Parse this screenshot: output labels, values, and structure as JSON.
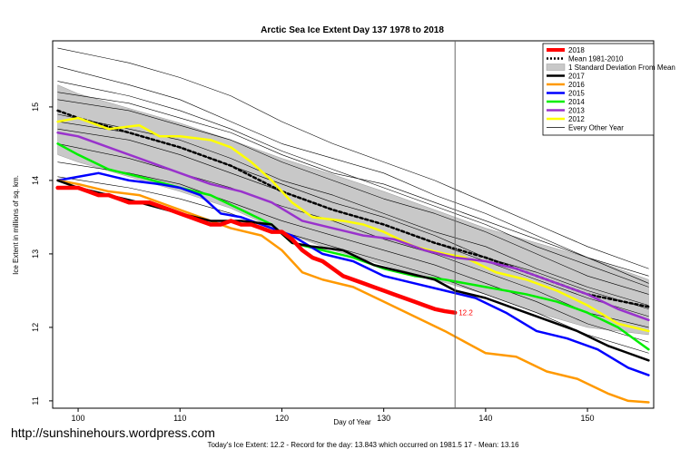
{
  "chart_data": {
    "type": "line",
    "title": "Arctic Sea Ice Extent Day 137 1978 to 2018",
    "xlabel": "Day of Year",
    "ylabel": "Ice Extent in millions of sq. km.",
    "xlim": [
      97.5,
      156.5
    ],
    "ylim": [
      10.9,
      15.9
    ],
    "x_ticks": [
      100,
      110,
      120,
      130,
      140,
      150
    ],
    "y_ticks": [
      11,
      12,
      13,
      14,
      15
    ],
    "x_tick_labels": [
      "100",
      "110",
      "120",
      "130",
      "140",
      "150"
    ],
    "y_tick_labels": [
      "11",
      "12",
      "13",
      "14",
      "15"
    ],
    "current_day": 137,
    "last_value_label": "12.2",
    "legend_position": "top-right",
    "band": {
      "name": "1 Standard Deviation From Mean",
      "x": [
        98,
        100,
        105,
        110,
        115,
        120,
        125,
        130,
        135,
        140,
        145,
        150,
        156
      ],
      "upper": [
        15.3,
        15.18,
        14.98,
        14.78,
        14.55,
        14.3,
        14.08,
        13.85,
        13.6,
        13.35,
        13.15,
        12.95,
        12.65
      ],
      "lower": [
        14.35,
        14.25,
        14.05,
        13.85,
        13.62,
        13.3,
        13.05,
        12.85,
        12.65,
        12.45,
        12.2,
        12.0,
        11.9
      ]
    },
    "series": [
      {
        "name": "Every Other Year",
        "style": "thin",
        "color": "#000000",
        "x": [
          98,
          105,
          110,
          115,
          120,
          125,
          130,
          135,
          140,
          145,
          150,
          156
        ],
        "values": [
          15.8,
          15.6,
          15.4,
          15.15,
          14.8,
          14.5,
          14.25,
          14.0,
          13.7,
          13.4,
          13.1,
          12.8
        ]
      },
      {
        "name": "Every Other Year",
        "style": "thin",
        "color": "#000000",
        "x": [
          98,
          105,
          110,
          115,
          120,
          125,
          130,
          135,
          140,
          145,
          150,
          156
        ],
        "values": [
          15.55,
          15.3,
          15.1,
          14.8,
          14.5,
          14.3,
          14.1,
          13.8,
          13.55,
          13.25,
          12.95,
          12.7
        ]
      },
      {
        "name": "Every Other Year",
        "style": "thin",
        "color": "#000000",
        "x": [
          98,
          105,
          110,
          115,
          120,
          125,
          130,
          135,
          140,
          145,
          150,
          156
        ],
        "values": [
          15.35,
          15.15,
          14.95,
          14.7,
          14.4,
          14.15,
          13.9,
          13.65,
          13.4,
          13.1,
          12.85,
          12.55
        ]
      },
      {
        "name": "Every Other Year",
        "style": "thin",
        "color": "#000000",
        "x": [
          98,
          105,
          110,
          115,
          120,
          125,
          130,
          135,
          140,
          145,
          150,
          156
        ],
        "values": [
          15.1,
          14.95,
          14.75,
          14.55,
          14.25,
          14.0,
          13.75,
          13.55,
          13.3,
          13.0,
          12.7,
          12.45
        ]
      },
      {
        "name": "Every Other Year",
        "style": "thin",
        "color": "#000000",
        "x": [
          98,
          105,
          110,
          115,
          120,
          125,
          130,
          135,
          140,
          145,
          150,
          156
        ],
        "values": [
          14.9,
          14.7,
          14.55,
          14.3,
          14.0,
          13.8,
          13.55,
          13.3,
          13.1,
          12.8,
          12.55,
          12.3
        ]
      },
      {
        "name": "Every Other Year",
        "style": "thin",
        "color": "#000000",
        "x": [
          98,
          105,
          110,
          115,
          120,
          125,
          130,
          135,
          140,
          145,
          150,
          156
        ],
        "values": [
          14.7,
          14.55,
          14.35,
          14.1,
          13.85,
          13.6,
          13.4,
          13.15,
          12.9,
          12.65,
          12.4,
          12.15
        ]
      },
      {
        "name": "Every Other Year",
        "style": "thin",
        "color": "#000000",
        "x": [
          98,
          105,
          110,
          115,
          120,
          125,
          130,
          135,
          140,
          145,
          150,
          156
        ],
        "values": [
          14.5,
          14.3,
          14.1,
          13.9,
          13.65,
          13.45,
          13.2,
          13.0,
          12.75,
          12.5,
          12.2,
          12.0
        ]
      },
      {
        "name": "Every Other Year",
        "style": "thin",
        "color": "#000000",
        "x": [
          98,
          105,
          110,
          115,
          120,
          125,
          130,
          135,
          140,
          145,
          150,
          156
        ],
        "values": [
          14.25,
          14.1,
          13.95,
          13.7,
          13.45,
          13.25,
          13.05,
          12.85,
          12.6,
          12.35,
          12.05,
          11.8
        ]
      },
      {
        "name": "Every Other Year",
        "style": "thin",
        "color": "#000000",
        "x": [
          98,
          105,
          110,
          115,
          120,
          125,
          130,
          135,
          140,
          145,
          150,
          156
        ],
        "values": [
          14.05,
          13.9,
          13.75,
          13.55,
          13.3,
          13.1,
          12.9,
          12.7,
          12.45,
          12.2,
          11.9,
          11.65
        ]
      },
      {
        "name": "Every Other Year",
        "style": "thin",
        "color": "#000000",
        "x": [
          98,
          105,
          110,
          115,
          120,
          125,
          130,
          135,
          140,
          145,
          150,
          156
        ],
        "values": [
          15.2,
          15.05,
          14.85,
          14.65,
          14.35,
          14.1,
          13.95,
          13.7,
          13.45,
          13.2,
          12.95,
          12.6
        ]
      },
      {
        "name": "Every Other Year",
        "style": "thin",
        "color": "#000000",
        "x": [
          98,
          105,
          110,
          115,
          120,
          125,
          130,
          135,
          140,
          145,
          150,
          156
        ],
        "values": [
          14.8,
          14.65,
          14.45,
          14.2,
          13.95,
          13.7,
          13.5,
          13.25,
          12.95,
          12.75,
          12.5,
          12.25
        ]
      },
      {
        "name": "Mean 1981-2010",
        "style": "dotted",
        "color": "#000000",
        "x": [
          98,
          100,
          105,
          110,
          115,
          120,
          125,
          130,
          135,
          140,
          145,
          150,
          156
        ],
        "values": [
          14.95,
          14.85,
          14.65,
          14.45,
          14.2,
          13.85,
          13.6,
          13.4,
          13.15,
          12.95,
          12.7,
          12.45,
          12.28
        ]
      },
      {
        "name": "2012",
        "color": "#ffff00",
        "x": [
          98,
          100,
          103,
          106,
          108,
          110,
          113,
          115,
          117,
          119,
          121,
          123,
          126,
          128,
          130,
          133,
          136,
          138,
          141,
          144,
          147,
          150,
          153,
          156
        ],
        "values": [
          14.8,
          14.85,
          14.7,
          14.75,
          14.6,
          14.6,
          14.55,
          14.45,
          14.25,
          14.0,
          13.7,
          13.5,
          13.45,
          13.4,
          13.3,
          13.1,
          13.0,
          12.95,
          12.75,
          12.65,
          12.5,
          12.3,
          12.05,
          11.95
        ]
      },
      {
        "name": "2013",
        "color": "#9932cc",
        "x": [
          98,
          100,
          103,
          106,
          110,
          113,
          116,
          119,
          122,
          125,
          128,
          131,
          134,
          137,
          140,
          143,
          146,
          150,
          153,
          156
        ],
        "values": [
          14.65,
          14.6,
          14.45,
          14.3,
          14.1,
          13.95,
          13.85,
          13.7,
          13.45,
          13.35,
          13.25,
          13.2,
          13.05,
          12.95,
          12.9,
          12.8,
          12.65,
          12.45,
          12.25,
          12.1
        ]
      },
      {
        "name": "2014",
        "color": "#00ee00",
        "x": [
          98,
          100,
          103,
          106,
          110,
          113,
          116,
          119,
          121,
          124,
          127,
          130,
          133,
          136,
          140,
          144,
          147,
          150,
          153,
          156
        ],
        "values": [
          14.5,
          14.35,
          14.15,
          14.05,
          13.9,
          13.8,
          13.6,
          13.4,
          13.15,
          13.05,
          12.95,
          12.8,
          12.7,
          12.65,
          12.55,
          12.45,
          12.35,
          12.2,
          12.0,
          11.7
        ]
      },
      {
        "name": "2015",
        "color": "#0000ff",
        "x": [
          98,
          100,
          102,
          105,
          108,
          110,
          112,
          114,
          116,
          118,
          121,
          124,
          127,
          130,
          133,
          136,
          139,
          142,
          145,
          148,
          151,
          154,
          156
        ],
        "values": [
          14.0,
          14.05,
          14.1,
          14.0,
          13.95,
          13.9,
          13.8,
          13.55,
          13.5,
          13.4,
          13.25,
          13.0,
          12.9,
          12.7,
          12.6,
          12.5,
          12.4,
          12.2,
          11.95,
          11.85,
          11.7,
          11.45,
          11.35
        ]
      },
      {
        "name": "2016",
        "color": "#ff9900",
        "x": [
          98,
          100,
          103,
          106,
          109,
          112,
          115,
          118,
          120,
          122,
          124,
          127,
          130,
          133,
          136,
          138,
          140,
          143,
          146,
          149,
          152,
          154,
          156
        ],
        "values": [
          14.0,
          13.95,
          13.85,
          13.8,
          13.65,
          13.5,
          13.35,
          13.25,
          13.05,
          12.75,
          12.65,
          12.55,
          12.35,
          12.15,
          11.95,
          11.8,
          11.65,
          11.6,
          11.4,
          11.3,
          11.1,
          11.0,
          10.98
        ]
      },
      {
        "name": "2017",
        "color": "#000000",
        "x": [
          98,
          100,
          103,
          106,
          110,
          113,
          116,
          119,
          121,
          123,
          126,
          129,
          132,
          135,
          137,
          140,
          143,
          146,
          149,
          152,
          154,
          156
        ],
        "values": [
          14.0,
          13.9,
          13.8,
          13.7,
          13.55,
          13.45,
          13.45,
          13.4,
          13.15,
          13.1,
          13.05,
          12.85,
          12.75,
          12.65,
          12.5,
          12.4,
          12.25,
          12.1,
          11.95,
          11.75,
          11.65,
          11.55
        ]
      },
      {
        "name": "2018",
        "color": "#ff0000",
        "x": [
          98,
          99,
          100,
          101,
          102,
          103,
          104,
          105,
          106,
          107,
          108,
          109,
          110,
          111,
          112,
          113,
          114,
          115,
          116,
          117,
          118,
          119,
          120,
          121,
          122,
          123,
          124,
          125,
          126,
          127,
          128,
          129,
          130,
          131,
          132,
          133,
          134,
          135,
          136,
          137
        ],
        "values": [
          13.9,
          13.9,
          13.9,
          13.85,
          13.8,
          13.8,
          13.75,
          13.7,
          13.7,
          13.7,
          13.65,
          13.6,
          13.55,
          13.5,
          13.45,
          13.4,
          13.4,
          13.45,
          13.4,
          13.4,
          13.35,
          13.3,
          13.3,
          13.2,
          13.05,
          12.95,
          12.9,
          12.8,
          12.7,
          12.65,
          12.6,
          12.55,
          12.5,
          12.45,
          12.4,
          12.35,
          12.3,
          12.25,
          12.22,
          12.2
        ]
      }
    ]
  },
  "legend": {
    "items": [
      {
        "label": "2018",
        "color": "#ff0000",
        "kind": "line-thick"
      },
      {
        "label": "Mean 1981-2010",
        "color": "#000000",
        "kind": "dotted"
      },
      {
        "label": "1 Standard Deviation From Mean",
        "color": "#c8c8c8",
        "kind": "box"
      },
      {
        "label": "2017",
        "color": "#000000",
        "kind": "line"
      },
      {
        "label": "2016",
        "color": "#ff9900",
        "kind": "line"
      },
      {
        "label": "2015",
        "color": "#0000ff",
        "kind": "line"
      },
      {
        "label": "2014",
        "color": "#00ee00",
        "kind": "line"
      },
      {
        "label": "2013",
        "color": "#9932cc",
        "kind": "line"
      },
      {
        "label": "2012",
        "color": "#ffff00",
        "kind": "line"
      },
      {
        "label": "Every Other Year",
        "color": "#000000",
        "kind": "thin"
      }
    ]
  },
  "footer": {
    "summary": "Today's Ice Extent: 12.2  - Record for the day: 13.843 which occurred on 1981.5 17  - Mean: 13.16"
  },
  "watermark": {
    "text": "http://sunshinehours.wordpress.com"
  }
}
